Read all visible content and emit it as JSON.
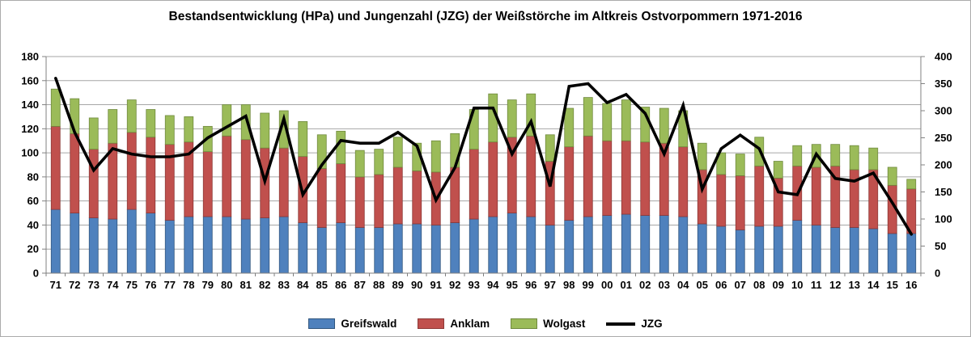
{
  "title": "Bestandsentwicklung (HPa) und Jungenzahl (JZG) der Weißstörche im Altkreis Ostvorpommern 1971-2016",
  "chart_data": {
    "type": "bar",
    "subtype": "stacked-bar-with-line",
    "categories": [
      "71",
      "72",
      "73",
      "74",
      "75",
      "76",
      "77",
      "78",
      "79",
      "80",
      "81",
      "82",
      "83",
      "84",
      "85",
      "86",
      "87",
      "88",
      "89",
      "90",
      "91",
      "92",
      "93",
      "94",
      "95",
      "96",
      "97",
      "98",
      "99",
      "00",
      "01",
      "02",
      "03",
      "04",
      "05",
      "06",
      "07",
      "08",
      "09",
      "10",
      "11",
      "12",
      "13",
      "14",
      "15",
      "16"
    ],
    "series": [
      {
        "name": "Greifswald",
        "type": "bar",
        "axis": "left",
        "color": "#4F81BD",
        "border": "#31567E",
        "values": [
          53,
          50,
          46,
          45,
          53,
          50,
          44,
          47,
          47,
          47,
          45,
          46,
          47,
          42,
          38,
          42,
          38,
          38,
          41,
          41,
          40,
          42,
          45,
          47,
          50,
          47,
          40,
          44,
          47,
          48,
          49,
          48,
          48,
          47,
          41,
          39,
          36,
          39,
          39,
          44,
          40,
          38,
          38,
          37,
          33,
          33
        ]
      },
      {
        "name": "Anklam",
        "type": "bar",
        "axis": "left",
        "color": "#C0504D",
        "border": "#8C3836",
        "values": [
          69,
          66,
          57,
          63,
          64,
          63,
          63,
          62,
          54,
          67,
          66,
          58,
          57,
          55,
          49,
          49,
          42,
          44,
          47,
          44,
          44,
          46,
          58,
          62,
          63,
          67,
          53,
          61,
          67,
          62,
          61,
          61,
          60,
          58,
          45,
          43,
          45,
          50,
          40,
          45,
          48,
          51,
          48,
          49,
          40,
          37
        ]
      },
      {
        "name": "Wolgast",
        "type": "bar",
        "axis": "left",
        "color": "#9BBB59",
        "border": "#6F893D",
        "values": [
          31,
          29,
          26,
          28,
          27,
          23,
          24,
          21,
          21,
          26,
          29,
          29,
          31,
          29,
          28,
          27,
          22,
          21,
          25,
          23,
          26,
          28,
          33,
          40,
          31,
          35,
          22,
          32,
          32,
          31,
          34,
          29,
          29,
          30,
          22,
          18,
          18,
          24,
          14,
          17,
          19,
          18,
          20,
          18,
          15,
          8
        ]
      },
      {
        "name": "JZG",
        "type": "line",
        "axis": "right",
        "color": "#000000",
        "values": [
          360,
          260,
          190,
          230,
          220,
          215,
          215,
          220,
          250,
          270,
          290,
          170,
          285,
          145,
          200,
          245,
          240,
          240,
          260,
          235,
          135,
          195,
          305,
          305,
          220,
          280,
          160,
          345,
          350,
          315,
          330,
          295,
          220,
          310,
          155,
          230,
          255,
          230,
          150,
          145,
          220,
          175,
          170,
          185,
          130,
          72
        ]
      }
    ],
    "axes": {
      "left": {
        "min": 0,
        "max": 180,
        "step": 20,
        "tick_labels": [
          "0",
          "20",
          "40",
          "60",
          "80",
          "100",
          "120",
          "140",
          "160",
          "180"
        ]
      },
      "right": {
        "min": 0,
        "max": 400,
        "step": 50,
        "tick_labels": [
          "0",
          "50",
          "100",
          "150",
          "200",
          "250",
          "300",
          "350",
          "400"
        ]
      }
    },
    "grid": true,
    "legend_position": "bottom",
    "gridline_color": "#a6a6a6",
    "axis_color": "#808080"
  },
  "legend": {
    "items": [
      "Greifswald",
      "Anklam",
      "Wolgast",
      "JZG"
    ]
  }
}
